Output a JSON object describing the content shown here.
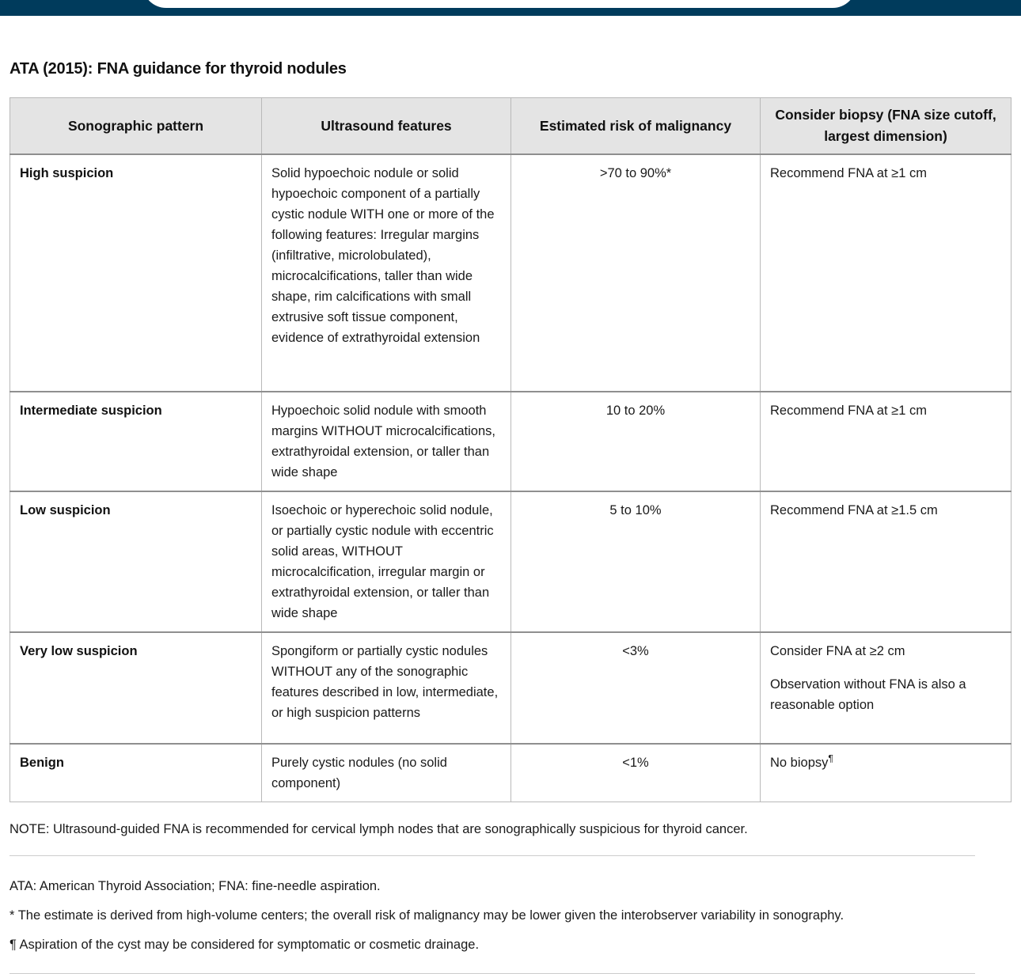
{
  "chrome": {
    "bar_color": "#003b5c"
  },
  "page": {
    "title": "ATA (2015): FNA guidance for thyroid nodules"
  },
  "table": {
    "headers": [
      "Sonographic pattern",
      "Ultrasound features",
      "Estimated risk of malignancy",
      "Consider biopsy (FNA size cutoff, largest dimension)"
    ],
    "rows": [
      {
        "pattern": "High suspicion",
        "features": "Solid hypoechoic nodule or solid hypoechoic component of a partially cystic nodule WITH one or more of the following features: Irregular margins (infiltrative, microlobulated), microcalcifications, taller than wide shape, rim calcifications with small extrusive soft tissue component, evidence of extrathyroidal extension",
        "risk": ">70 to 90%*",
        "biopsy": "Recommend FNA at ≥1 cm"
      },
      {
        "pattern": "Intermediate suspicion",
        "features": "Hypoechoic solid nodule with smooth margins WITHOUT microcalcifications, extrathyroidal extension, or taller than wide shape",
        "risk": "10 to 20%",
        "biopsy": "Recommend FNA at ≥1 cm"
      },
      {
        "pattern": "Low suspicion",
        "features": "Isoechoic or hyperechoic solid nodule, or partially cystic nodule with eccentric solid areas, WITHOUT microcalcification, irregular margin or extrathyroidal extension, or taller than wide shape",
        "risk": "5 to 10%",
        "biopsy": "Recommend FNA at ≥1.5 cm"
      },
      {
        "pattern": "Very low suspicion",
        "features": "Spongiform or partially cystic nodules WITHOUT any of the sonographic features described in low, intermediate, or high suspicion patterns",
        "risk": "<3%",
        "biopsy": "Consider FNA at ≥2 cm",
        "biopsy2": "Observation without FNA is also a reasonable option"
      },
      {
        "pattern": "Benign",
        "features": "Purely cystic nodules (no solid component)",
        "risk": "<1%",
        "biopsy": "No biopsy",
        "biopsy_sup": "¶"
      }
    ]
  },
  "footnotes": {
    "note": "NOTE: Ultrasound-guided FNA is recommended for cervical lymph nodes that are sonographically suspicious for thyroid cancer.",
    "abbrev": "ATA: American Thyroid Association; FNA: fine-needle aspiration.",
    "asterisk": "* The estimate is derived from high-volume centers; the overall risk of malignancy may be lower given the interobserver variability in sonography.",
    "pilcrow": "¶ Aspiration of the cyst may be considered for symptomatic or cosmetic drainage."
  }
}
